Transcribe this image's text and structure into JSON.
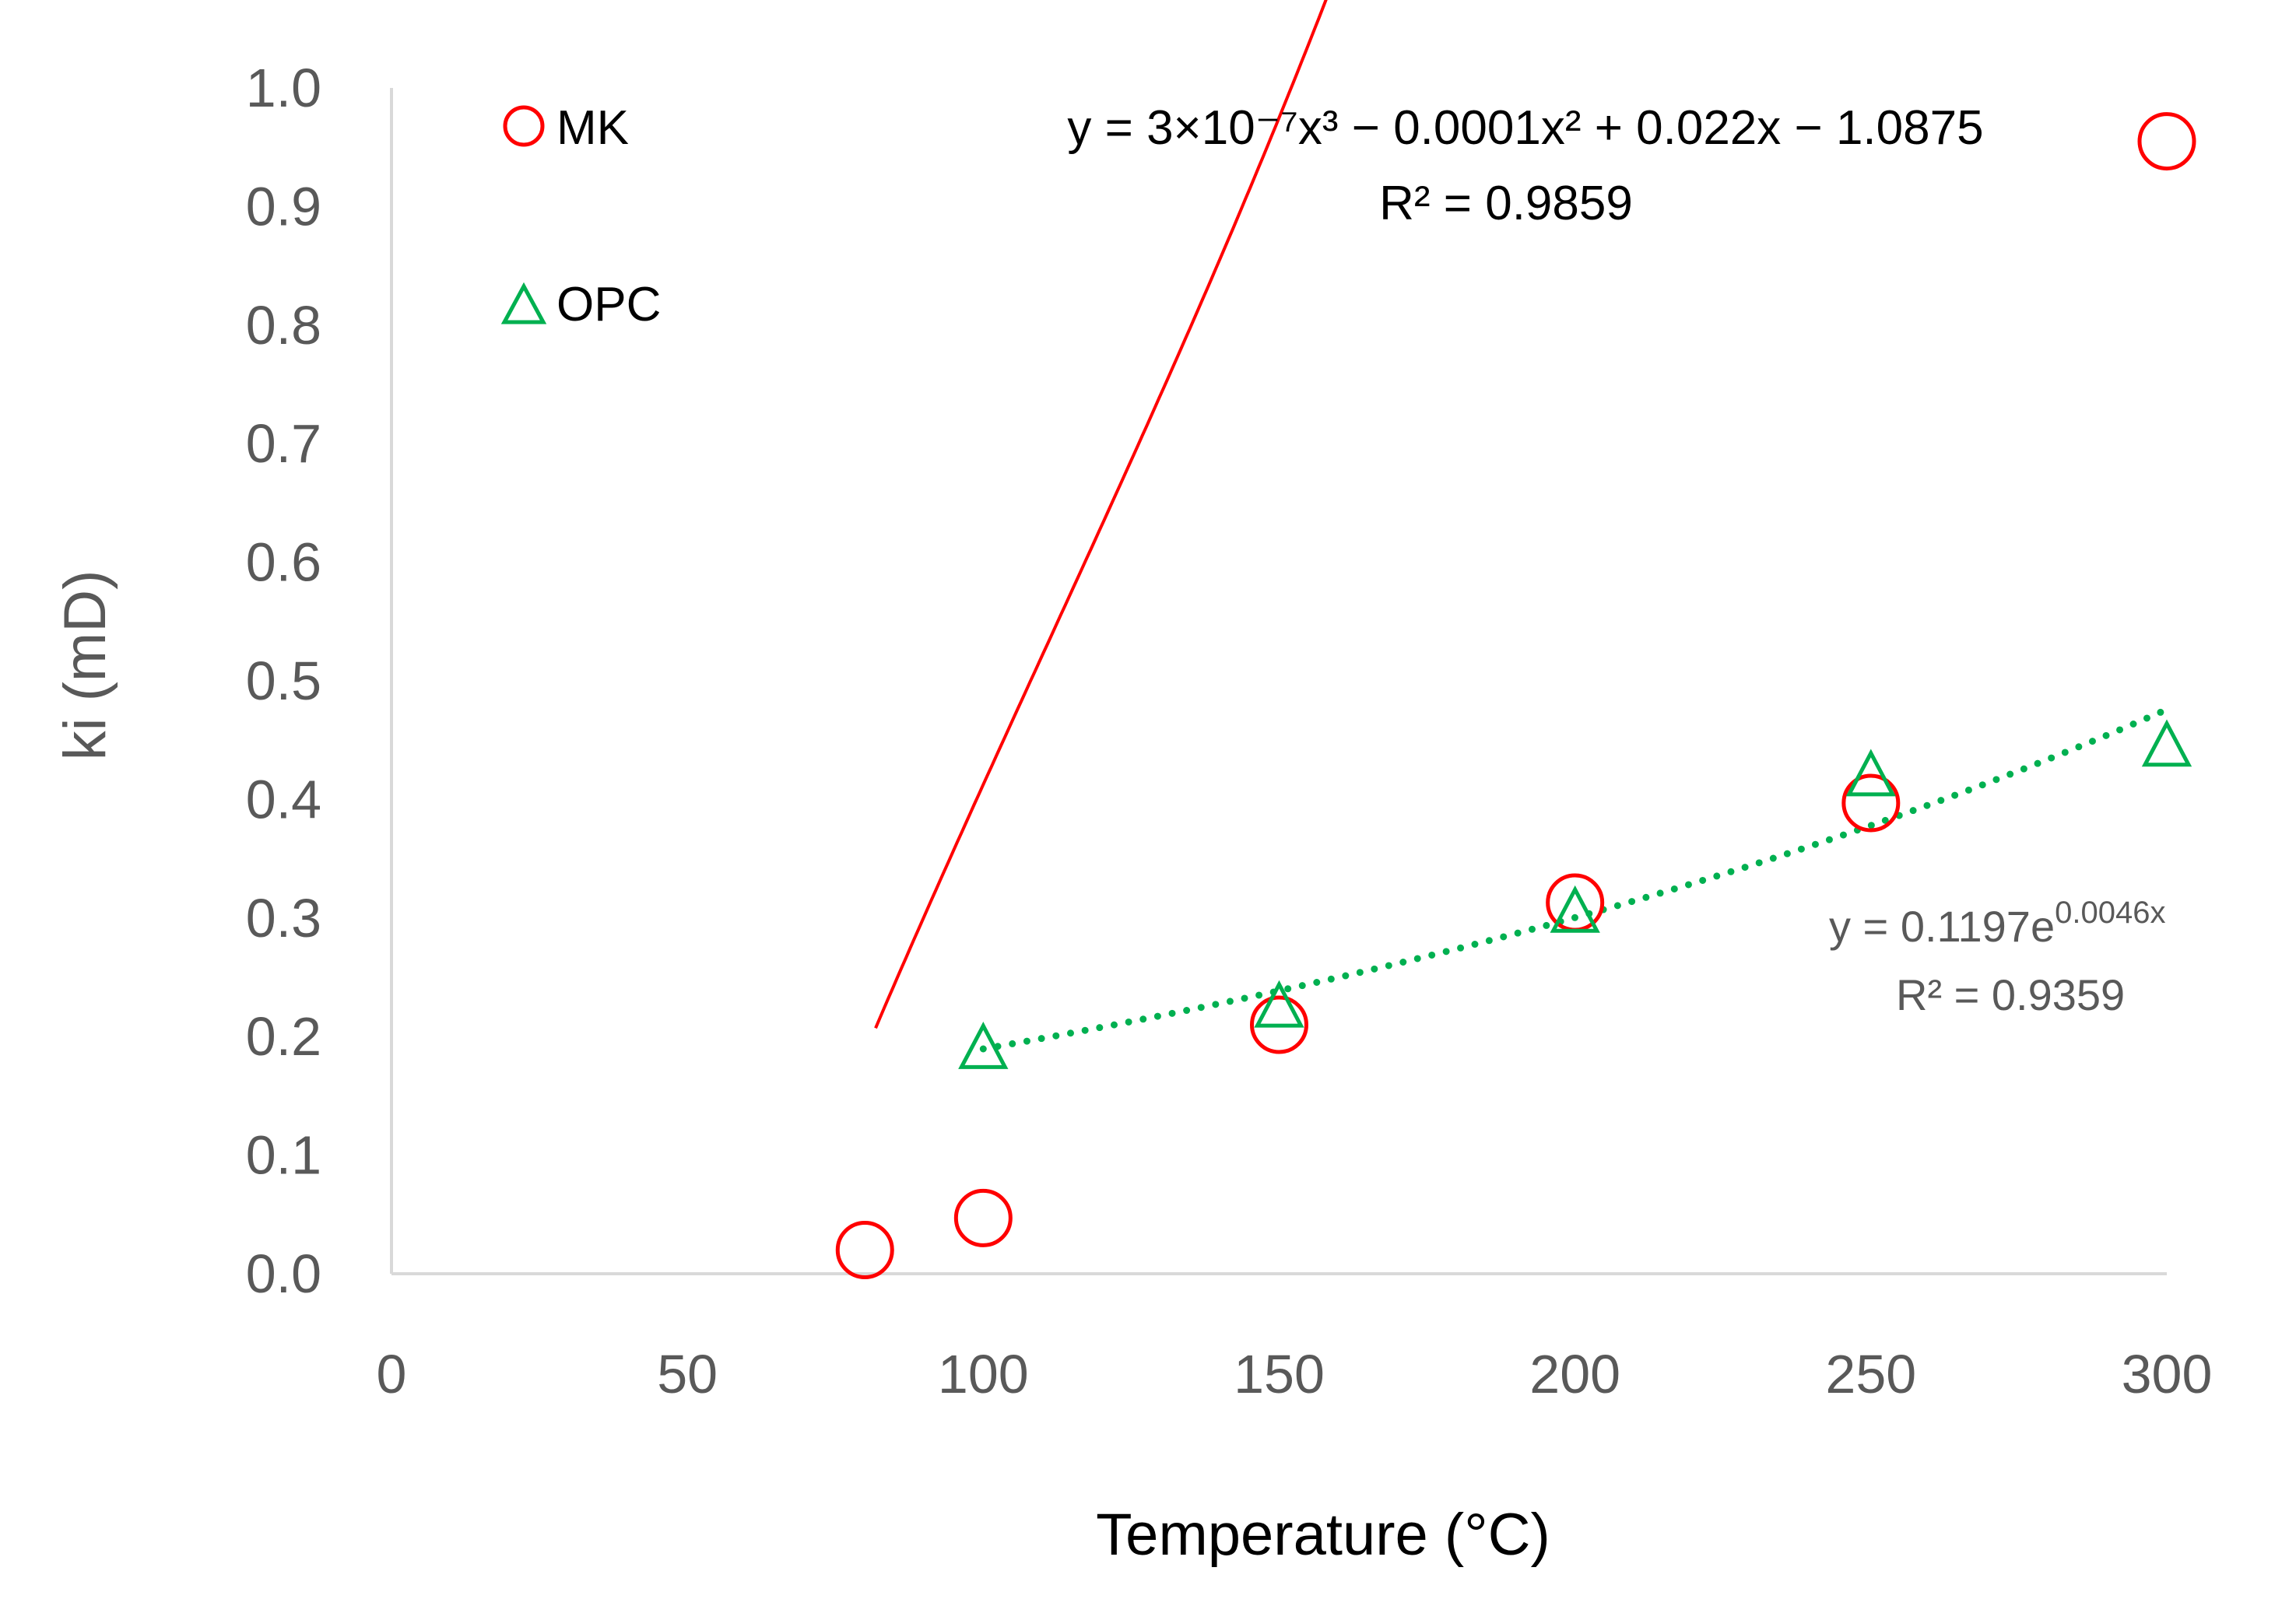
{
  "chart_data": {
    "type": "scatter",
    "xlabel": "Temperature (°C)",
    "ylabel": "ki (mD)",
    "xlim": [
      0,
      300
    ],
    "ylim": [
      0,
      1.0
    ],
    "x_ticks": [
      "0",
      "50",
      "100",
      "150",
      "200",
      "250",
      "300"
    ],
    "y_ticks": [
      "0.0",
      "0.1",
      "0.2",
      "0.3",
      "0.4",
      "0.5",
      "0.6",
      "0.7",
      "0.8",
      "0.9",
      "1.0"
    ],
    "grid": false,
    "legend_position": "top-left",
    "series": [
      {
        "name": "MK",
        "marker": "circle",
        "color": "#ff0000",
        "x": [
          80,
          100,
          150,
          200,
          250,
          300
        ],
        "y": [
          0.02,
          0.047,
          0.21,
          0.313,
          0.397,
          0.955
        ],
        "trendline": {
          "type": "polynomial",
          "style": "solid",
          "coefficients": [
            3e-07,
            -0.0001,
            0.022,
            -1.0875
          ],
          "equation": "y = 3×10⁻⁷x³ − 0.0001x² + 0.022x − 1.0875",
          "r2_label": "R² = 0.9859"
        }
      },
      {
        "name": "OPC",
        "marker": "triangle",
        "color": "#00b050",
        "x": [
          100,
          150,
          200,
          250,
          300
        ],
        "y": [
          0.19,
          0.225,
          0.305,
          0.42,
          0.445
        ],
        "trendline": {
          "type": "exponential",
          "style": "dotted",
          "a": 0.1197,
          "b": 0.0046,
          "equation_base": "y = 0.1197e",
          "equation_exp": "0.0046x",
          "r2_label": "R² = 0.9359"
        }
      }
    ]
  }
}
